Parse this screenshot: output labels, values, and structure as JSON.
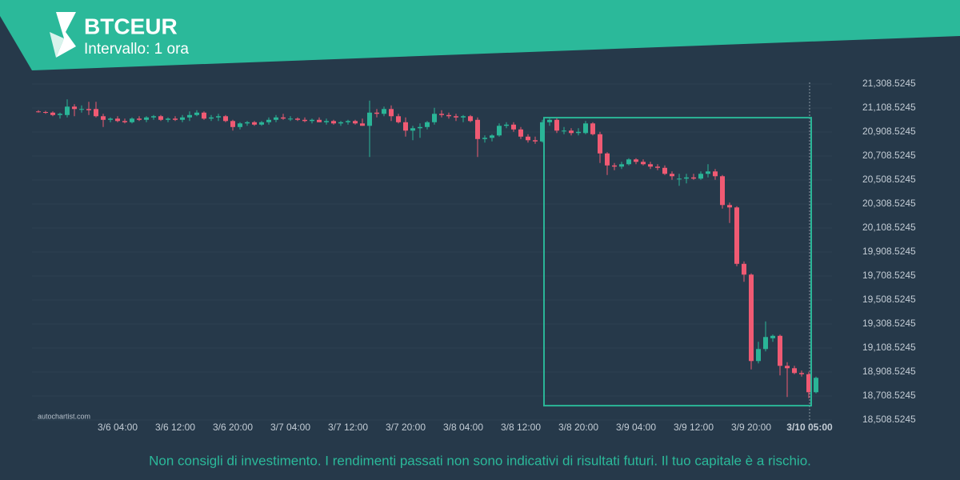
{
  "chart_data": {
    "type": "candlestick",
    "title": "BTCEUR",
    "subtitle": "Intervallo: 1 ora",
    "source": "autochartist.com",
    "footer": "Non consigli di investimento. I rendimenti passati non sono indicativi di risultati futuri. Il tuo capitale è a rischio.",
    "up_color": "#2ab597",
    "down_color": "#f05a73",
    "grid": true,
    "x": [
      "3/5 17:00",
      "3/5 18:00",
      "3/5 19:00",
      "3/5 20:00",
      "3/5 21:00",
      "3/5 22:00",
      "3/5 23:00",
      "3/6 00:00",
      "3/6 01:00",
      "3/6 02:00",
      "3/6 03:00",
      "3/6 04:00",
      "3/6 05:00",
      "3/6 06:00",
      "3/6 07:00",
      "3/6 08:00",
      "3/6 09:00",
      "3/6 10:00",
      "3/6 11:00",
      "3/6 12:00",
      "3/6 13:00",
      "3/6 14:00",
      "3/6 15:00",
      "3/6 16:00",
      "3/6 17:00",
      "3/6 18:00",
      "3/6 19:00",
      "3/6 20:00",
      "3/6 21:00",
      "3/6 22:00",
      "3/6 23:00",
      "3/7 00:00",
      "3/7 01:00",
      "3/7 02:00",
      "3/7 03:00",
      "3/7 04:00",
      "3/7 05:00",
      "3/7 06:00",
      "3/7 07:00",
      "3/7 08:00",
      "3/7 09:00",
      "3/7 10:00",
      "3/7 11:00",
      "3/7 12:00",
      "3/7 13:00",
      "3/7 14:00",
      "3/7 15:00",
      "3/7 16:00",
      "3/7 17:00",
      "3/7 18:00",
      "3/7 19:00",
      "3/7 20:00",
      "3/7 21:00",
      "3/7 22:00",
      "3/7 23:00",
      "3/8 00:00",
      "3/8 01:00",
      "3/8 02:00",
      "3/8 03:00",
      "3/8 04:00",
      "3/8 05:00",
      "3/8 06:00",
      "3/8 07:00",
      "3/8 08:00",
      "3/8 09:00",
      "3/8 10:00",
      "3/8 11:00",
      "3/8 12:00",
      "3/8 13:00",
      "3/8 14:00",
      "3/8 15:00",
      "3/8 16:00",
      "3/8 17:00",
      "3/8 18:00",
      "3/8 19:00",
      "3/8 20:00",
      "3/8 21:00",
      "3/8 22:00",
      "3/8 23:00",
      "3/9 00:00",
      "3/9 01:00",
      "3/9 02:00",
      "3/9 03:00",
      "3/9 04:00",
      "3/9 05:00",
      "3/9 06:00",
      "3/9 07:00",
      "3/9 08:00",
      "3/9 09:00",
      "3/9 10:00",
      "3/9 11:00",
      "3/9 12:00",
      "3/9 13:00",
      "3/9 14:00",
      "3/9 15:00",
      "3/9 16:00",
      "3/9 17:00",
      "3/9 18:00",
      "3/9 19:00",
      "3/9 20:00",
      "3/9 21:00",
      "3/9 22:00",
      "3/9 23:00",
      "3/10 00:00",
      "3/10 01:00",
      "3/10 02:00",
      "3/10 03:00",
      "3/10 04:00",
      "3/10 05:00"
    ],
    "ohlc": [
      [
        21080,
        21090,
        21070,
        21075
      ],
      [
        21075,
        21085,
        21060,
        21070
      ],
      [
        21070,
        21080,
        21040,
        21050
      ],
      [
        21050,
        21070,
        21020,
        21060
      ],
      [
        21050,
        21180,
        21030,
        21120
      ],
      [
        21120,
        21140,
        21040,
        21100
      ],
      [
        21100,
        21130,
        21070,
        21100
      ],
      [
        21100,
        21160,
        21050,
        21090
      ],
      [
        21100,
        21160,
        21030,
        21040
      ],
      [
        21040,
        21060,
        20950,
        21010
      ],
      [
        21010,
        21030,
        20990,
        21020
      ],
      [
        21020,
        21040,
        20990,
        21000
      ],
      [
        21000,
        21020,
        20980,
        20990
      ],
      [
        20990,
        21030,
        20980,
        21020
      ],
      [
        21020,
        21040,
        21000,
        21010
      ],
      [
        21010,
        21040,
        20990,
        21030
      ],
      [
        21030,
        21050,
        21010,
        21040
      ],
      [
        21040,
        21050,
        21000,
        21010
      ],
      [
        21010,
        21030,
        20990,
        21020
      ],
      [
        21020,
        21040,
        21000,
        21010
      ],
      [
        21010,
        21050,
        20990,
        21030
      ],
      [
        21030,
        21080,
        21000,
        21050
      ],
      [
        21050,
        21090,
        21040,
        21070
      ],
      [
        21070,
        21080,
        21010,
        21020
      ],
      [
        21020,
        21050,
        21000,
        21030
      ],
      [
        21030,
        21060,
        21000,
        21040
      ],
      [
        21040,
        21050,
        20990,
        21000
      ],
      [
        21000,
        21010,
        20920,
        20950
      ],
      [
        20950,
        20990,
        20930,
        20980
      ],
      [
        20980,
        21000,
        20960,
        20990
      ],
      [
        20990,
        21000,
        20960,
        20970
      ],
      [
        20970,
        21000,
        20960,
        20990
      ],
      [
        20990,
        21030,
        20970,
        21010
      ],
      [
        21010,
        21050,
        20990,
        21030
      ],
      [
        21030,
        21060,
        21010,
        21020
      ],
      [
        21020,
        21040,
        21000,
        21020
      ],
      [
        21020,
        21030,
        21000,
        21010
      ],
      [
        21010,
        21030,
        20990,
        21000
      ],
      [
        21000,
        21020,
        20980,
        21010
      ],
      [
        21010,
        21030,
        20990,
        20990
      ],
      [
        20990,
        21020,
        20970,
        21000
      ],
      [
        21000,
        21010,
        20970,
        20980
      ],
      [
        20980,
        21000,
        20960,
        20990
      ],
      [
        20990,
        21010,
        20970,
        21000
      ],
      [
        21000,
        21010,
        20970,
        20980
      ],
      [
        20980,
        21020,
        20960,
        20960
      ],
      [
        20960,
        21170,
        20700,
        21070
      ],
      [
        21070,
        21100,
        21030,
        21060
      ],
      [
        21060,
        21120,
        21040,
        21100
      ],
      [
        21100,
        21130,
        21000,
        21040
      ],
      [
        21040,
        21060,
        20980,
        20990
      ],
      [
        20990,
        21030,
        20870,
        20920
      ],
      [
        20920,
        20960,
        20840,
        20940
      ],
      [
        20940,
        20980,
        20860,
        20950
      ],
      [
        20950,
        21000,
        20930,
        20990
      ],
      [
        20990,
        21110,
        20970,
        21060
      ],
      [
        21060,
        21090,
        21030,
        21050
      ],
      [
        21050,
        21070,
        21020,
        21040
      ],
      [
        21040,
        21060,
        21000,
        21030
      ],
      [
        21030,
        21050,
        20990,
        21040
      ],
      [
        21040,
        21050,
        20990,
        21000
      ],
      [
        21010,
        21030,
        20700,
        20850
      ],
      [
        20850,
        20880,
        20820,
        20860
      ],
      [
        20860,
        20890,
        20830,
        20880
      ],
      [
        20880,
        20980,
        20870,
        20960
      ],
      [
        20960,
        20990,
        20940,
        20970
      ],
      [
        20970,
        20990,
        20910,
        20930
      ],
      [
        20930,
        20950,
        20850,
        20870
      ],
      [
        20870,
        20890,
        20820,
        20840
      ],
      [
        20840,
        20870,
        20810,
        20830
      ],
      [
        20830,
        21010,
        20820,
        20990
      ],
      [
        20990,
        21030,
        20960,
        21010
      ],
      [
        21010,
        21030,
        20900,
        20920
      ],
      [
        20920,
        20950,
        20890,
        20920
      ],
      [
        20920,
        20940,
        20880,
        20900
      ],
      [
        20900,
        20940,
        20880,
        20910
      ],
      [
        20900,
        21000,
        20890,
        20980
      ],
      [
        20980,
        20990,
        20880,
        20890
      ],
      [
        20890,
        20910,
        20650,
        20730
      ],
      [
        20730,
        20740,
        20550,
        20630
      ],
      [
        20630,
        20650,
        20590,
        20620
      ],
      [
        20620,
        20660,
        20600,
        20640
      ],
      [
        20640,
        20690,
        20630,
        20680
      ],
      [
        20680,
        20690,
        20640,
        20660
      ],
      [
        20660,
        20680,
        20630,
        20640
      ],
      [
        20640,
        20660,
        20600,
        20620
      ],
      [
        20620,
        20640,
        20590,
        20610
      ],
      [
        20610,
        20630,
        20550,
        20560
      ],
      [
        20560,
        20580,
        20510,
        20540
      ],
      [
        20520,
        20560,
        20460,
        20520
      ],
      [
        20520,
        20560,
        20480,
        20530
      ],
      [
        20530,
        20560,
        20510,
        20520
      ],
      [
        20520,
        20580,
        20510,
        20560
      ],
      [
        20560,
        20640,
        20530,
        20580
      ],
      [
        20580,
        20600,
        20510,
        20540
      ],
      [
        20540,
        20550,
        20270,
        20300
      ],
      [
        20300,
        20320,
        20150,
        20280
      ],
      [
        20280,
        20290,
        19790,
        19810
      ],
      [
        19810,
        19830,
        19660,
        19720
      ],
      [
        19720,
        19730,
        18930,
        19000
      ],
      [
        19000,
        19160,
        18980,
        19100
      ],
      [
        19100,
        19330,
        19080,
        19200
      ],
      [
        19190,
        19220,
        19160,
        19210
      ],
      [
        19210,
        19220,
        18880,
        18960
      ],
      [
        18960,
        18990,
        18700,
        18940
      ],
      [
        18940,
        18960,
        18890,
        18900
      ],
      [
        18900,
        18920,
        18870,
        18890
      ],
      [
        18890,
        18910,
        18690,
        18740
      ],
      [
        18740,
        18870,
        18730,
        18860
      ]
    ],
    "highlight": {
      "color": "#2ab597",
      "x": [
        "3/8 15:00",
        "3/10 04:00"
      ],
      "y": [
        18628,
        21028
      ]
    },
    "ylim": [
      18508.5245,
      21308.5245
    ],
    "yticks": [
      {
        "value": 18508.5245,
        "label": "18,508.5245"
      },
      {
        "value": 18708.5245,
        "label": "18,708.5245"
      },
      {
        "value": 18908.5245,
        "label": "18,908.5245"
      },
      {
        "value": 19108.5245,
        "label": "19,108.5245"
      },
      {
        "value": 19308.5245,
        "label": "19,308.5245"
      },
      {
        "value": 19508.5245,
        "label": "19,508.5245"
      },
      {
        "value": 19708.5245,
        "label": "19,708.5245"
      },
      {
        "value": 19908.5245,
        "label": "19,908.5245"
      },
      {
        "value": 20108.5245,
        "label": "20,108.5245"
      },
      {
        "value": 20308.5245,
        "label": "20,308.5245"
      },
      {
        "value": 20508.5245,
        "label": "20,508.5245"
      },
      {
        "value": 20708.5245,
        "label": "20,708.5245"
      },
      {
        "value": 20908.5245,
        "label": "20,908.5245"
      },
      {
        "value": 21108.5245,
        "label": "21,108.5245"
      },
      {
        "value": 21308.5245,
        "label": "21,308.5245"
      }
    ],
    "xticks": [
      "3/6 04:00",
      "3/6 12:00",
      "3/6 20:00",
      "3/7 04:00",
      "3/7 12:00",
      "3/7 20:00",
      "3/8 04:00",
      "3/8 12:00",
      "3/8 20:00",
      "3/9 04:00",
      "3/9 12:00",
      "3/9 20:00"
    ]
  }
}
